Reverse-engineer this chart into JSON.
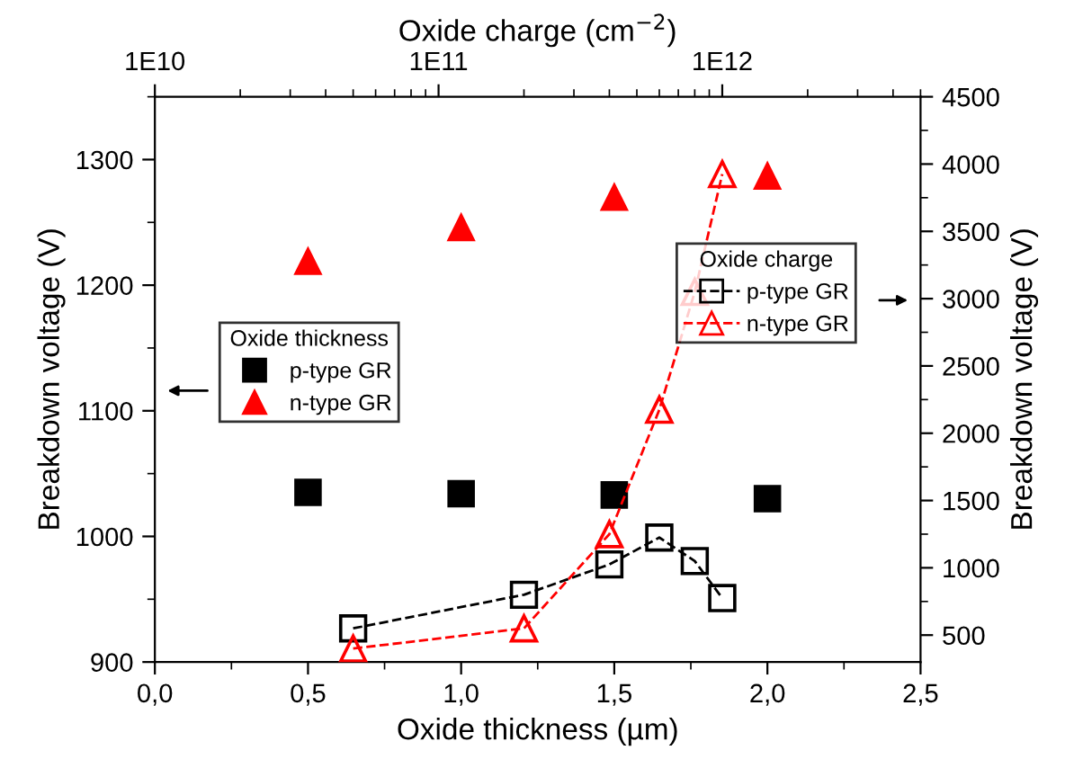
{
  "chart_data": [
    {
      "type": "scatter",
      "xlabel": "Oxide thickness (µm)",
      "ylabel": "Breakdown voltage (V)",
      "legend_title": "Oxide thickness",
      "legend": "left",
      "x": [
        0.5,
        1.0,
        1.5,
        2.0
      ],
      "series": [
        {
          "name": "p-type GR",
          "color": "#000000",
          "marker": "square",
          "values": [
            1035,
            1034,
            1033,
            1030
          ]
        },
        {
          "name": "n-type GR",
          "color": "#ff0000",
          "marker": "triangle",
          "values": [
            1219,
            1246,
            1270,
            1287
          ]
        }
      ],
      "xlim": [
        0,
        2.5
      ],
      "xticks": [
        {
          "value": 0,
          "label": "0,0"
        },
        {
          "value": 0.5,
          "label": "0,5"
        },
        {
          "value": 1.0,
          "label": "1,0"
        },
        {
          "value": 1.5,
          "label": "1,5"
        },
        {
          "value": 2.0,
          "label": "2,0"
        },
        {
          "value": 2.5,
          "label": "2,5"
        }
      ],
      "ylim": [
        900,
        1350
      ],
      "yticks": [
        900,
        1000,
        1100,
        1200,
        1300
      ]
    },
    {
      "type": "line",
      "xlabel": "Oxide charge (cm$^{−2}$)",
      "ylabel": "Breakdown voltage (V)",
      "legend_title": "Oxide charge",
      "legend": "right",
      "log": "x",
      "line_style": "dashed",
      "x": [
        50000000000.0,
        200000000000.0,
        400000000000.0,
        600000000000.0,
        800000000000.0,
        1000000000000.0
      ],
      "series": [
        {
          "name": "p-type GR",
          "color": "#000000",
          "marker": "square",
          "values": [
            550,
            800,
            1025,
            1225,
            1050,
            775
          ]
        },
        {
          "name": "n-type GR",
          "color": "#ff0000",
          "marker": "triangle",
          "values": [
            400,
            550,
            1250,
            2175,
            3050,
            3925
          ]
        }
      ],
      "xlim": [
        10000000000.0,
        5000000000000.0
      ],
      "xticks": [
        {
          "value": 10000000000.0,
          "label": "1E10"
        },
        {
          "value": 100000000000.0,
          "label": "1E11"
        },
        {
          "value": 1000000000000.0,
          "label": "1E12"
        }
      ],
      "ylim": [
        300,
        4500
      ],
      "yticks": [
        500,
        1000,
        1500,
        2000,
        2500,
        3000,
        3500,
        4000,
        4500
      ]
    }
  ]
}
